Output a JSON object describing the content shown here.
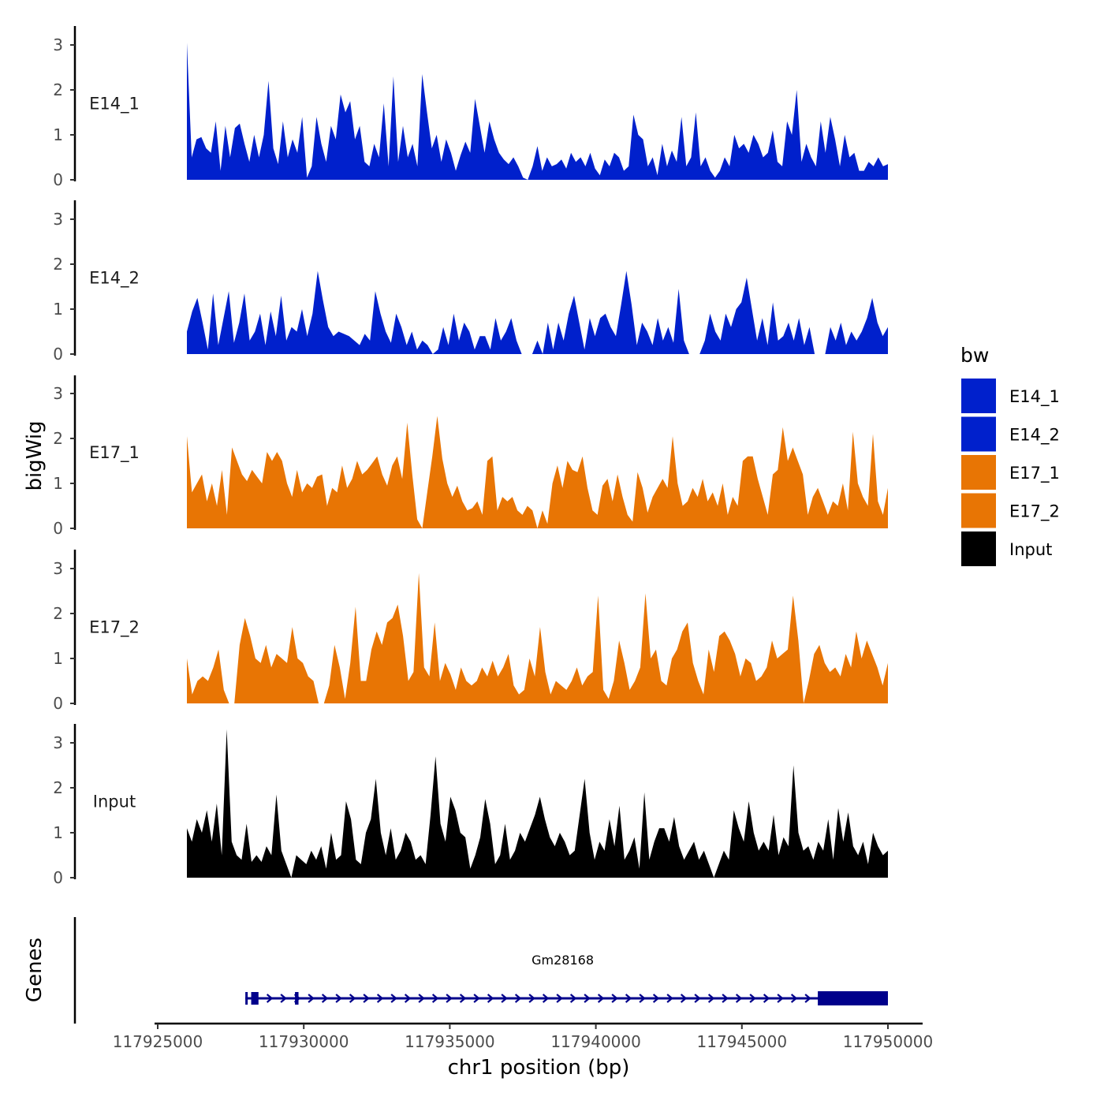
{
  "chart_data": {
    "type": "area",
    "ylabel": "bigWig",
    "xlabel": "chr1 position (bp)",
    "ylim": [
      0,
      3.4
    ],
    "y_ticks": [
      "0",
      "1",
      "2",
      "3"
    ],
    "x_range": [
      117925000,
      117950000
    ],
    "x_ticks": [
      {
        "value": 117925000,
        "label": "117925000"
      },
      {
        "value": 117930000,
        "label": "117930000"
      },
      {
        "value": 117935000,
        "label": "117935000"
      },
      {
        "value": 117940000,
        "label": "117940000"
      },
      {
        "value": 117945000,
        "label": "117945000"
      },
      {
        "value": 117950000,
        "label": "117950000"
      }
    ],
    "data_start": 117926000,
    "data_end": 117950000,
    "legend": {
      "title": "bw",
      "entries": [
        {
          "name": "E14_1",
          "color": "#0020CC"
        },
        {
          "name": "E14_2",
          "color": "#0020CC"
        },
        {
          "name": "E17_1",
          "color": "#E87504"
        },
        {
          "name": "E17_2",
          "color": "#E87504"
        },
        {
          "name": "Input",
          "color": "#000000"
        }
      ]
    },
    "series": [
      {
        "name": "E14_1",
        "color": "#0020CC",
        "values": [
          3.05,
          0.5,
          0.9,
          0.95,
          0.7,
          0.6,
          1.3,
          0.2,
          1.2,
          0.5,
          1.15,
          1.25,
          0.8,
          0.4,
          1.0,
          0.5,
          1.0,
          2.2,
          0.7,
          0.35,
          1.3,
          0.5,
          0.9,
          0.6,
          1.4,
          0.05,
          0.3,
          1.4,
          0.8,
          0.4,
          1.2,
          0.9,
          1.9,
          1.5,
          1.75,
          0.9,
          1.2,
          0.4,
          0.3,
          0.8,
          0.5,
          1.7,
          0.3,
          2.3,
          0.4,
          1.2,
          0.5,
          0.8,
          0.3,
          2.35,
          1.5,
          0.7,
          1.0,
          0.4,
          0.9,
          0.6,
          0.2,
          0.55,
          0.85,
          0.6,
          1.8,
          1.2,
          0.6,
          1.3,
          0.9,
          0.6,
          0.45,
          0.35,
          0.5,
          0.3,
          0.05,
          0.0,
          0.3,
          0.75,
          0.2,
          0.5,
          0.3,
          0.35,
          0.45,
          0.25,
          0.6,
          0.4,
          0.5,
          0.3,
          0.6,
          0.25,
          0.1,
          0.45,
          0.3,
          0.6,
          0.5,
          0.2,
          0.3,
          1.45,
          1.0,
          0.9,
          0.3,
          0.5,
          0.1,
          0.8,
          0.3,
          0.65,
          0.4,
          1.4,
          0.3,
          0.5,
          1.5,
          0.3,
          0.5,
          0.2,
          0.05,
          0.2,
          0.5,
          0.3,
          1.0,
          0.7,
          0.8,
          0.6,
          1.0,
          0.8,
          0.5,
          0.6,
          1.1,
          0.4,
          0.3,
          1.3,
          1.0,
          2.0,
          0.4,
          0.8,
          0.5,
          0.3,
          1.3,
          0.6,
          1.4,
          0.9,
          0.3,
          1.0,
          0.5,
          0.6,
          0.2,
          0.2,
          0.4,
          0.3,
          0.5,
          0.3,
          0.35
        ]
      },
      {
        "name": "E14_2",
        "color": "#0020CC",
        "values": [
          0.5,
          0.95,
          1.25,
          0.7,
          0.1,
          1.35,
          0.2,
          0.8,
          1.4,
          0.25,
          0.7,
          1.35,
          0.3,
          0.5,
          0.9,
          0.2,
          0.95,
          0.4,
          1.3,
          0.3,
          0.6,
          0.5,
          1.0,
          0.4,
          0.9,
          1.85,
          1.2,
          0.6,
          0.4,
          0.5,
          0.45,
          0.4,
          0.3,
          0.2,
          0.45,
          0.3,
          1.4,
          0.9,
          0.5,
          0.25,
          0.9,
          0.6,
          0.2,
          0.5,
          0.1,
          0.3,
          0.2,
          0.0,
          0.1,
          0.6,
          0.2,
          0.9,
          0.3,
          0.7,
          0.5,
          0.1,
          0.4,
          0.4,
          0.1,
          0.8,
          0.3,
          0.5,
          0.8,
          0.3,
          0.0,
          null,
          0.0,
          0.3,
          0.0,
          0.7,
          0.1,
          0.7,
          0.3,
          0.9,
          1.3,
          0.7,
          0.1,
          0.8,
          0.4,
          0.8,
          0.9,
          0.6,
          0.4,
          1.1,
          1.85,
          1.1,
          0.2,
          0.7,
          0.5,
          0.2,
          0.8,
          0.3,
          0.6,
          0.25,
          1.45,
          0.3,
          0.0,
          null,
          0.0,
          0.3,
          0.9,
          0.5,
          0.3,
          0.9,
          0.6,
          1.0,
          1.15,
          1.7,
          1.0,
          0.3,
          0.8,
          0.2,
          1.15,
          0.3,
          0.4,
          0.7,
          0.3,
          0.8,
          0.2,
          0.6,
          0.0,
          null,
          0.0,
          0.6,
          0.3,
          0.7,
          0.2,
          0.5,
          0.3,
          0.5,
          0.8,
          1.25,
          0.7,
          0.4,
          0.6
        ]
      },
      {
        "name": "E17_1",
        "color": "#E87504",
        "values": [
          2.05,
          0.8,
          1.0,
          1.2,
          0.6,
          1.0,
          0.5,
          1.3,
          0.3,
          1.8,
          1.5,
          1.2,
          1.05,
          1.3,
          1.15,
          1.0,
          1.7,
          1.5,
          1.7,
          1.5,
          1.0,
          0.7,
          1.3,
          0.8,
          1.0,
          0.9,
          1.15,
          1.2,
          0.5,
          0.9,
          0.8,
          1.4,
          0.9,
          1.1,
          1.5,
          1.2,
          1.3,
          1.45,
          1.6,
          1.2,
          0.95,
          1.4,
          1.6,
          1.1,
          2.35,
          1.2,
          0.2,
          0.0,
          0.8,
          1.6,
          2.5,
          1.55,
          1.0,
          0.7,
          0.95,
          0.6,
          0.4,
          0.45,
          0.6,
          0.3,
          1.5,
          1.6,
          0.4,
          0.7,
          0.6,
          0.7,
          0.4,
          0.3,
          0.5,
          0.4,
          0.0,
          0.4,
          0.1,
          1.0,
          1.4,
          0.9,
          1.5,
          1.3,
          1.25,
          1.6,
          0.9,
          0.4,
          0.3,
          0.95,
          1.1,
          0.6,
          1.2,
          0.7,
          0.3,
          0.15,
          1.25,
          0.9,
          0.35,
          0.7,
          0.9,
          1.1,
          0.9,
          2.05,
          1.0,
          0.5,
          0.6,
          0.9,
          0.7,
          1.1,
          0.6,
          0.8,
          0.5,
          1.0,
          0.3,
          0.7,
          0.5,
          1.5,
          1.6,
          1.6,
          1.1,
          0.7,
          0.3,
          1.2,
          1.3,
          2.25,
          1.5,
          1.8,
          1.5,
          1.2,
          0.3,
          0.7,
          0.9,
          0.6,
          0.3,
          0.6,
          0.5,
          1.0,
          0.4,
          2.15,
          1.0,
          0.7,
          0.5,
          2.1,
          0.6,
          0.3,
          0.9
        ]
      },
      {
        "name": "E17_2",
        "color": "#E87504",
        "values": [
          1.0,
          0.2,
          0.5,
          0.6,
          0.5,
          0.8,
          1.2,
          0.3,
          0.0,
          0.0,
          1.3,
          1.9,
          1.5,
          1.0,
          0.9,
          1.3,
          0.8,
          1.1,
          1.0,
          0.9,
          1.7,
          1.0,
          0.9,
          0.6,
          0.5,
          0.0,
          0.0,
          0.4,
          1.3,
          0.8,
          0.1,
          0.9,
          2.15,
          0.5,
          0.5,
          1.2,
          1.6,
          1.3,
          1.8,
          1.9,
          2.2,
          1.5,
          0.5,
          0.7,
          2.9,
          0.8,
          0.6,
          1.8,
          0.5,
          0.9,
          0.65,
          0.3,
          0.8,
          0.5,
          0.4,
          0.5,
          0.8,
          0.6,
          0.95,
          0.6,
          0.8,
          1.1,
          0.4,
          0.2,
          0.3,
          1.0,
          0.6,
          1.7,
          0.7,
          0.2,
          0.5,
          0.4,
          0.3,
          0.5,
          0.8,
          0.4,
          0.6,
          0.7,
          2.4,
          0.3,
          0.1,
          0.5,
          1.4,
          0.9,
          0.3,
          0.5,
          0.8,
          2.45,
          1.0,
          1.2,
          0.5,
          0.4,
          1.0,
          1.2,
          1.6,
          1.8,
          0.9,
          0.5,
          0.2,
          1.2,
          0.7,
          1.5,
          1.6,
          1.4,
          1.1,
          0.6,
          1.0,
          0.9,
          0.5,
          0.6,
          0.8,
          1.4,
          1.0,
          1.1,
          1.2,
          2.4,
          1.4,
          0.0,
          0.5,
          1.1,
          1.3,
          0.9,
          0.7,
          0.8,
          0.6,
          1.1,
          0.8,
          1.6,
          1.0,
          1.4,
          1.1,
          0.8,
          0.4,
          0.9
        ]
      },
      {
        "name": "Input",
        "color": "#000000",
        "values": [
          1.1,
          0.8,
          1.3,
          1.0,
          1.5,
          0.8,
          1.65,
          0.5,
          3.3,
          0.8,
          0.5,
          0.4,
          1.2,
          0.35,
          0.5,
          0.35,
          0.7,
          0.5,
          1.85,
          0.6,
          0.3,
          0.0,
          0.5,
          0.4,
          0.3,
          0.6,
          0.4,
          0.7,
          0.2,
          1.0,
          0.4,
          0.5,
          1.7,
          1.3,
          0.4,
          0.3,
          1.0,
          1.3,
          2.2,
          1.0,
          0.5,
          1.1,
          0.4,
          0.6,
          1.0,
          0.8,
          0.4,
          0.5,
          0.3,
          1.4,
          2.7,
          1.2,
          0.8,
          1.8,
          1.5,
          1.0,
          0.9,
          0.2,
          0.5,
          0.9,
          1.75,
          1.2,
          0.3,
          0.5,
          1.2,
          0.4,
          0.6,
          1.0,
          0.8,
          1.1,
          1.4,
          1.8,
          1.3,
          0.9,
          0.7,
          1.0,
          0.8,
          0.5,
          0.6,
          1.4,
          2.2,
          1.0,
          0.4,
          0.8,
          0.6,
          1.3,
          0.7,
          1.6,
          0.4,
          0.6,
          0.9,
          0.2,
          1.9,
          0.4,
          0.8,
          1.1,
          1.1,
          0.8,
          1.35,
          0.7,
          0.4,
          0.6,
          0.8,
          0.4,
          0.6,
          0.3,
          0.0,
          0.3,
          0.6,
          0.4,
          1.5,
          1.1,
          0.8,
          1.7,
          1.0,
          0.6,
          0.8,
          0.6,
          1.4,
          0.5,
          0.9,
          0.7,
          2.5,
          1.0,
          0.6,
          0.7,
          0.4,
          0.8,
          0.6,
          1.3,
          0.4,
          1.55,
          0.8,
          1.45,
          0.7,
          0.5,
          0.8,
          0.3,
          1.0,
          0.7,
          0.5,
          0.6
        ]
      }
    ],
    "genes": {
      "title": "Genes",
      "items": [
        {
          "name": "Gm28168",
          "start": 117928000,
          "end": 117950000,
          "strand": "+",
          "color": "#00008B",
          "exons": [
            [
              117928000,
              117928080
            ],
            [
              117928200,
              117928450
            ],
            [
              117929700,
              117929820
            ],
            [
              117947600,
              117950000
            ]
          ]
        }
      ]
    }
  }
}
